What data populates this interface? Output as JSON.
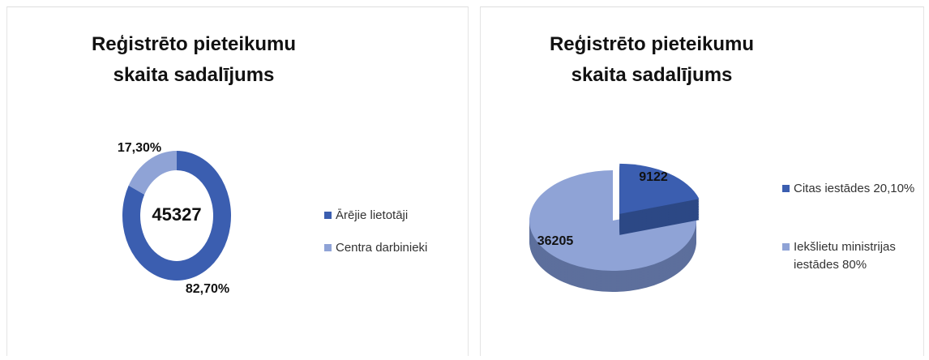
{
  "chart_data": [
    {
      "type": "donut",
      "title": "Reģistrēto pieteikumu skaita sadalījums",
      "center_label": "45327",
      "categories": [
        "Ārējie lietotāji",
        "Centra darbinieki"
      ],
      "values": [
        82.7,
        17.3
      ],
      "value_labels": [
        "82,70%",
        "17,30%"
      ],
      "colors": [
        "#3b5eb0",
        "#8fa3d6"
      ]
    },
    {
      "type": "pie",
      "title": "Reģistrēto pieteikumu skaita sadalījums",
      "categories": [
        "Citas iestādes 20,10%",
        "Iekšlietu ministrijas iestādes 80%"
      ],
      "values": [
        9122,
        36205
      ],
      "colors": [
        "#3b5eb0",
        "#8fa3d6"
      ]
    }
  ]
}
